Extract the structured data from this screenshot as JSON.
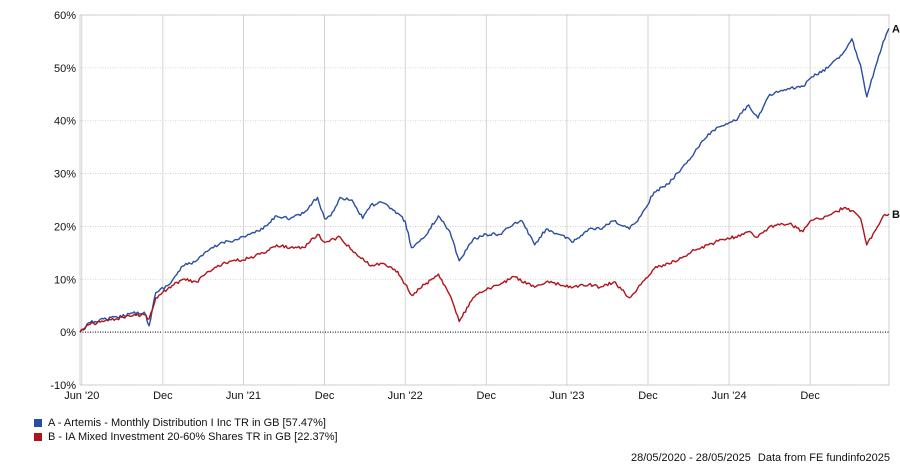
{
  "chart_data": {
    "type": "line",
    "x_range": [
      "2020-05-28",
      "2025-05-28"
    ],
    "xticks": [
      {
        "date": "2020-06-01",
        "label": "Jun '20"
      },
      {
        "date": "2020-12-01",
        "label": "Dec"
      },
      {
        "date": "2021-06-01",
        "label": "Jun '21"
      },
      {
        "date": "2021-12-01",
        "label": "Dec"
      },
      {
        "date": "2022-06-01",
        "label": "Jun '22"
      },
      {
        "date": "2022-12-01",
        "label": "Dec"
      },
      {
        "date": "2023-06-01",
        "label": "Jun '23"
      },
      {
        "date": "2023-12-01",
        "label": "Dec"
      },
      {
        "date": "2024-06-01",
        "label": "Jun '24"
      },
      {
        "date": "2024-12-01",
        "label": "Dec"
      }
    ],
    "ylim": [
      -10,
      60
    ],
    "yticks": [
      -10,
      0,
      10,
      20,
      30,
      40,
      50,
      60
    ],
    "yunit": "%",
    "grid": true,
    "series": [
      {
        "name": "A - Artemis - Monthly Distribution I Inc TR in GB [57.47%]",
        "end_label": "A",
        "color": "#2a4fa0",
        "points": [
          [
            "2020-05-28",
            0
          ],
          [
            "2020-06-20",
            1.8
          ],
          [
            "2020-07-20",
            2.5
          ],
          [
            "2020-08-20",
            2.8
          ],
          [
            "2020-09-20",
            3.6
          ],
          [
            "2020-10-20",
            3.8
          ],
          [
            "2020-10-31",
            1.2
          ],
          [
            "2020-11-15",
            7.5
          ],
          [
            "2020-12-15",
            9.0
          ],
          [
            "2021-01-15",
            12.5
          ],
          [
            "2021-02-15",
            13.5
          ],
          [
            "2021-03-15",
            15.5
          ],
          [
            "2021-04-15",
            17.0
          ],
          [
            "2021-05-15",
            17.5
          ],
          [
            "2021-06-15",
            18.5
          ],
          [
            "2021-07-15",
            19.5
          ],
          [
            "2021-08-15",
            22.0
          ],
          [
            "2021-09-15",
            21.5
          ],
          [
            "2021-10-15",
            22.5
          ],
          [
            "2021-11-15",
            25.5
          ],
          [
            "2021-12-01",
            21.5
          ],
          [
            "2021-12-15",
            22.0
          ],
          [
            "2022-01-05",
            25.5
          ],
          [
            "2022-02-01",
            25.0
          ],
          [
            "2022-02-25",
            21.5
          ],
          [
            "2022-03-15",
            24.0
          ],
          [
            "2022-04-10",
            24.5
          ],
          [
            "2022-05-15",
            22.5
          ],
          [
            "2022-06-01",
            21.0
          ],
          [
            "2022-06-15",
            16.0
          ],
          [
            "2022-07-15",
            18.0
          ],
          [
            "2022-08-15",
            22.0
          ],
          [
            "2022-09-10",
            19.0
          ],
          [
            "2022-10-01",
            13.5
          ],
          [
            "2022-11-01",
            17.5
          ],
          [
            "2022-12-01",
            18.5
          ],
          [
            "2023-01-01",
            18.5
          ],
          [
            "2023-02-01",
            20.5
          ],
          [
            "2023-02-20",
            21.0
          ],
          [
            "2023-03-20",
            16.5
          ],
          [
            "2023-04-15",
            19.5
          ],
          [
            "2023-05-15",
            18.5
          ],
          [
            "2023-06-15",
            17.0
          ],
          [
            "2023-07-20",
            19.5
          ],
          [
            "2023-08-15",
            19.5
          ],
          [
            "2023-09-15",
            21.0
          ],
          [
            "2023-10-20",
            19.5
          ],
          [
            "2023-11-15",
            22.0
          ],
          [
            "2023-12-15",
            26.5
          ],
          [
            "2024-01-15",
            28.0
          ],
          [
            "2024-02-15",
            31.0
          ],
          [
            "2024-03-15",
            34.0
          ],
          [
            "2024-04-15",
            37.5
          ],
          [
            "2024-05-15",
            39.0
          ],
          [
            "2024-06-15",
            40.0
          ],
          [
            "2024-07-15",
            43.0
          ],
          [
            "2024-08-05",
            40.5
          ],
          [
            "2024-09-01",
            45.0
          ],
          [
            "2024-10-15",
            46.0
          ],
          [
            "2024-11-15",
            46.5
          ],
          [
            "2024-12-01",
            48.0
          ],
          [
            "2025-01-10",
            50.0
          ],
          [
            "2025-02-15",
            53.0
          ],
          [
            "2025-03-05",
            55.5
          ],
          [
            "2025-03-25",
            50.5
          ],
          [
            "2025-04-08",
            44.5
          ],
          [
            "2025-04-25",
            49.5
          ],
          [
            "2025-05-15",
            55.0
          ],
          [
            "2025-05-28",
            57.47
          ]
        ]
      },
      {
        "name": "B - IA Mixed Investment 20-60% Shares TR in GB [22.37%]",
        "end_label": "B",
        "color": "#b0141a",
        "points": [
          [
            "2020-05-28",
            0
          ],
          [
            "2020-06-20",
            1.5
          ],
          [
            "2020-07-20",
            2.0
          ],
          [
            "2020-08-20",
            2.5
          ],
          [
            "2020-09-20",
            3.0
          ],
          [
            "2020-10-20",
            3.3
          ],
          [
            "2020-10-31",
            2.5
          ],
          [
            "2020-11-15",
            6.5
          ],
          [
            "2020-12-15",
            8.5
          ],
          [
            "2021-01-15",
            10.0
          ],
          [
            "2021-02-15",
            9.5
          ],
          [
            "2021-03-15",
            11.5
          ],
          [
            "2021-04-15",
            13.0
          ],
          [
            "2021-05-15",
            13.5
          ],
          [
            "2021-06-15",
            14.0
          ],
          [
            "2021-07-15",
            15.0
          ],
          [
            "2021-08-15",
            16.5
          ],
          [
            "2021-09-15",
            16.0
          ],
          [
            "2021-10-15",
            16.0
          ],
          [
            "2021-11-15",
            18.5
          ],
          [
            "2021-12-01",
            17.0
          ],
          [
            "2021-12-15",
            17.5
          ],
          [
            "2022-01-05",
            18.0
          ],
          [
            "2022-02-01",
            15.5
          ],
          [
            "2022-02-25",
            14.0
          ],
          [
            "2022-03-15",
            12.5
          ],
          [
            "2022-04-10",
            13.0
          ],
          [
            "2022-05-15",
            11.5
          ],
          [
            "2022-06-15",
            7.0
          ],
          [
            "2022-07-15",
            9.0
          ],
          [
            "2022-08-15",
            11.0
          ],
          [
            "2022-09-10",
            7.0
          ],
          [
            "2022-10-01",
            2.0
          ],
          [
            "2022-11-01",
            6.5
          ],
          [
            "2022-12-01",
            8.0
          ],
          [
            "2023-01-01",
            9.0
          ],
          [
            "2023-02-01",
            10.5
          ],
          [
            "2023-03-20",
            8.5
          ],
          [
            "2023-04-15",
            9.5
          ],
          [
            "2023-05-15",
            9.0
          ],
          [
            "2023-06-15",
            8.5
          ],
          [
            "2023-07-20",
            9.0
          ],
          [
            "2023-08-15",
            8.5
          ],
          [
            "2023-09-15",
            9.5
          ],
          [
            "2023-10-20",
            6.5
          ],
          [
            "2023-11-15",
            9.0
          ],
          [
            "2023-12-15",
            12.0
          ],
          [
            "2024-01-15",
            13.0
          ],
          [
            "2024-02-15",
            14.0
          ],
          [
            "2024-03-15",
            15.5
          ],
          [
            "2024-04-15",
            16.5
          ],
          [
            "2024-05-15",
            17.5
          ],
          [
            "2024-06-15",
            18.0
          ],
          [
            "2024-07-15",
            19.0
          ],
          [
            "2024-08-05",
            18.0
          ],
          [
            "2024-09-01",
            20.0
          ],
          [
            "2024-10-15",
            20.5
          ],
          [
            "2024-11-15",
            19.0
          ],
          [
            "2024-12-01",
            21.0
          ],
          [
            "2025-01-10",
            22.0
          ],
          [
            "2025-02-15",
            23.5
          ],
          [
            "2025-03-05",
            23.0
          ],
          [
            "2025-03-25",
            21.5
          ],
          [
            "2025-04-08",
            16.5
          ],
          [
            "2025-04-25",
            19.0
          ],
          [
            "2025-05-15",
            22.0
          ],
          [
            "2025-05-28",
            22.37
          ]
        ]
      }
    ],
    "legend_position": "bottom-left"
  },
  "footer": {
    "date_range": "28/05/2020 - 28/05/2025",
    "credit": "Data from FE fundinfo2025"
  }
}
